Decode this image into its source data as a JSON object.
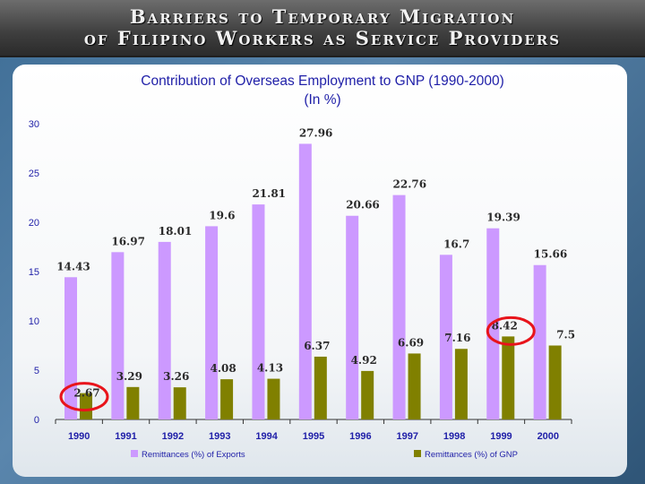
{
  "header": {
    "line1": "Barriers to Temporary Migration",
    "line2": "of Filipino Workers as Service Providers"
  },
  "chart_data": {
    "type": "bar",
    "title": "Contribution of Overseas Employment to GNP (1990-2000)",
    "subtitle": "(In %)",
    "categories": [
      "1990",
      "1991",
      "1992",
      "1993",
      "1994",
      "1995",
      "1996",
      "1997",
      "1998",
      "1999",
      "2000"
    ],
    "series": [
      {
        "name": "Remittances (%) of Exports",
        "color": "#cc99ff",
        "values": [
          14.43,
          16.97,
          18.01,
          19.6,
          21.81,
          27.96,
          20.66,
          22.76,
          16.7,
          19.39,
          15.66
        ]
      },
      {
        "name": "Remittances (%) of GNP",
        "color": "#808000",
        "values": [
          2.67,
          3.29,
          3.26,
          4.08,
          4.13,
          6.37,
          4.92,
          6.69,
          7.16,
          8.42,
          7.5
        ]
      }
    ],
    "ylim": [
      0,
      30
    ],
    "yticks": [
      0,
      5,
      10,
      15,
      20,
      25,
      30
    ],
    "legend": "bottom",
    "highlighted": [
      "1990 Remittances (%) of GNP",
      "1999 Remittances (%) of GNP"
    ],
    "highlight_color": "#e8141b"
  }
}
